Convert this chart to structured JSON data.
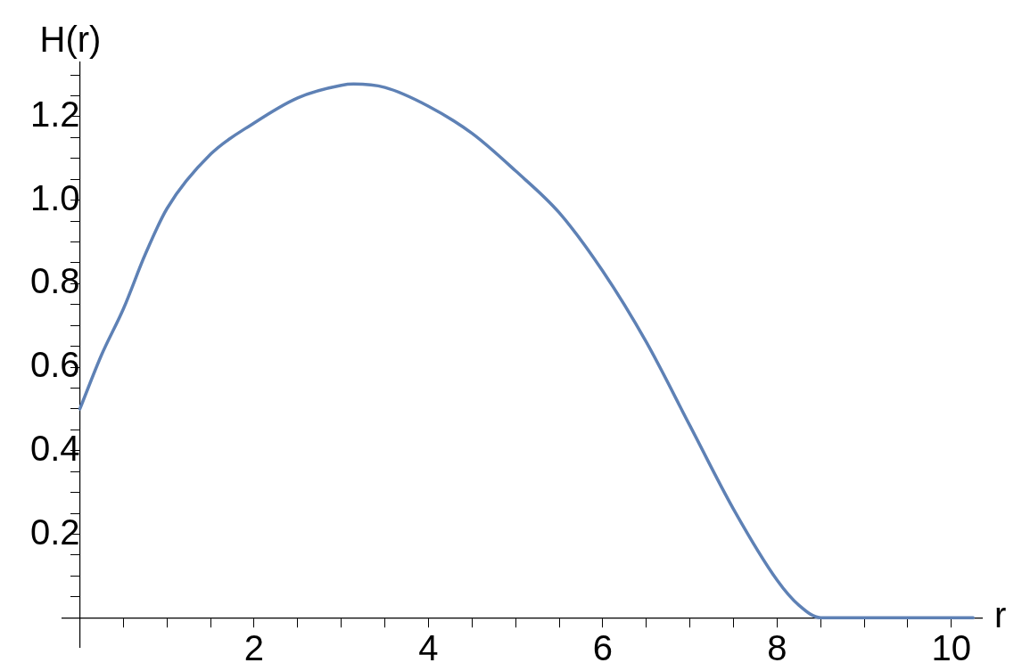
{
  "chart_data": {
    "type": "line",
    "xlabel": "r",
    "ylabel": "H(r)",
    "series": [
      {
        "color": "#5e81b5",
        "x": [
          0,
          0.25,
          0.5,
          0.75,
          1,
          1.5,
          2,
          2.5,
          3,
          3.14,
          3.5,
          4,
          4.5,
          5,
          5.5,
          6,
          6.5,
          7,
          7.5,
          8,
          8.25,
          8.5,
          9,
          9.5,
          10,
          10.25
        ],
        "values": [
          0.5,
          0.63,
          0.74,
          0.87,
          0.98,
          1.11,
          1.185,
          1.245,
          1.275,
          1.278,
          1.27,
          1.225,
          1.16,
          1.07,
          0.97,
          0.83,
          0.66,
          0.46,
          0.26,
          0.09,
          0.03,
          0,
          0,
          0,
          0,
          0
        ]
      }
    ],
    "xlim": [
      -0.2,
      10.35
    ],
    "ylim": [
      -0.07,
      1.33
    ],
    "xticks": [
      2,
      4,
      6,
      8,
      10,
      {
        "value": 0.5,
        "label": null
      },
      {
        "value": 1,
        "label": null
      },
      {
        "value": 1.5,
        "label": null
      },
      {
        "value": 2.5,
        "label": null
      },
      {
        "value": 3,
        "label": null
      },
      {
        "value": 3.5,
        "label": null
      },
      {
        "value": 4.5,
        "label": null
      },
      {
        "value": 5,
        "label": null
      },
      {
        "value": 5.5,
        "label": null
      },
      {
        "value": 6.5,
        "label": null
      },
      {
        "value": 7,
        "label": null
      },
      {
        "value": 7.5,
        "label": null
      },
      {
        "value": 8.5,
        "label": null
      },
      {
        "value": 9,
        "label": null
      },
      {
        "value": 9.5,
        "label": null
      }
    ],
    "yticks": [
      {
        "value": 0.2,
        "label": "0.2"
      },
      {
        "value": 0.4,
        "label": "0.4"
      },
      {
        "value": 0.6,
        "label": "0.6"
      },
      {
        "value": 0.8,
        "label": "0.8"
      },
      {
        "value": 1,
        "label": "1.0"
      },
      {
        "value": 1.2,
        "label": "1.2"
      },
      {
        "value": 0.05,
        "label": null
      },
      {
        "value": 0.1,
        "label": null
      },
      {
        "value": 0.15,
        "label": null
      },
      {
        "value": 0.25,
        "label": null
      },
      {
        "value": 0.3,
        "label": null
      },
      {
        "value": 0.35,
        "label": null
      },
      {
        "value": 0.45,
        "label": null
      },
      {
        "value": 0.5,
        "label": null
      },
      {
        "value": 0.55,
        "label": null
      },
      {
        "value": 0.65,
        "label": null
      },
      {
        "value": 0.7,
        "label": null
      },
      {
        "value": 0.75,
        "label": null
      },
      {
        "value": 0.85,
        "label": null
      },
      {
        "value": 0.9,
        "label": null
      },
      {
        "value": 0.95,
        "label": null
      },
      {
        "value": 1.05,
        "label": null
      },
      {
        "value": 1.1,
        "label": null
      },
      {
        "value": 1.15,
        "label": null
      },
      {
        "value": 1.25,
        "label": null
      },
      {
        "value": 1.3,
        "label": null
      }
    ],
    "grid": false,
    "legend": false,
    "marker": "none",
    "line_style": "solid"
  }
}
